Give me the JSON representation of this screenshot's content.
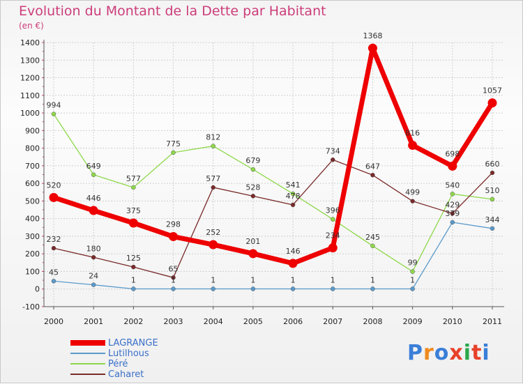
{
  "header": {
    "title": "Evolution du Montant de la Dette par Habitant",
    "unit": "(en €)"
  },
  "brand": {
    "text": "Proxiti",
    "colors": [
      "#3a7fd8",
      "#f08a1c",
      "#3a7fd8",
      "#e8402a",
      "#2aa84a",
      "#e8402a",
      "#3a7fd8"
    ]
  },
  "colors": {
    "grid": "#d0d0d0",
    "axis": "#555555",
    "tick_mark": "#cc3d7a"
  },
  "chart_data": {
    "type": "line",
    "title": "Evolution du Montant de la Dette par Habitant",
    "ylabel": "(en €)",
    "xlabel": "",
    "x": [
      "2000",
      "2001",
      "2002",
      "2003",
      "2004",
      "2005",
      "2006",
      "2007",
      "2008",
      "2009",
      "2010",
      "2011"
    ],
    "ylim": [
      -100,
      1400
    ],
    "yticks": [
      "-100",
      "0",
      "100",
      "200",
      "300",
      "400",
      "500",
      "600",
      "700",
      "800",
      "900",
      "1000",
      "1100",
      "1200",
      "1300",
      "1400"
    ],
    "grid": true,
    "legend": "bottom-left",
    "series": [
      {
        "name": "LAGRANGE",
        "color": "#ee0000",
        "values": [
          520,
          446,
          375,
          298,
          252,
          201,
          146,
          234,
          1368,
          816,
          698,
          1057
        ],
        "labels": [
          "520",
          "446",
          "375",
          "298",
          "252",
          "201",
          "146",
          "234",
          "1368",
          "816",
          "698",
          "1057"
        ]
      },
      {
        "name": "Lutilhous",
        "color": "#5a9acb",
        "values": [
          45,
          24,
          1,
          1,
          1,
          1,
          1,
          1,
          1,
          1,
          379,
          344
        ],
        "labels": [
          "45",
          "24",
          "1",
          "1",
          "1",
          "1",
          "1",
          "1",
          "1",
          "1",
          "379",
          "344"
        ]
      },
      {
        "name": "Péré",
        "color": "#8ed84a",
        "values": [
          994,
          649,
          577,
          775,
          812,
          679,
          541,
          396,
          245,
          99,
          540,
          510
        ],
        "labels": [
          "994",
          "649",
          "577",
          "775",
          "812",
          "679",
          "541",
          "396",
          "245",
          "99",
          "540",
          "510"
        ]
      },
      {
        "name": "Caharet",
        "color": "#7a2a2a",
        "values": [
          232,
          180,
          125,
          65,
          577,
          528,
          478,
          734,
          647,
          499,
          429,
          660
        ],
        "labels": [
          "232",
          "180",
          "125",
          "65",
          "577",
          "528",
          "478",
          "734",
          "647",
          "499",
          "429",
          "660"
        ]
      }
    ]
  }
}
